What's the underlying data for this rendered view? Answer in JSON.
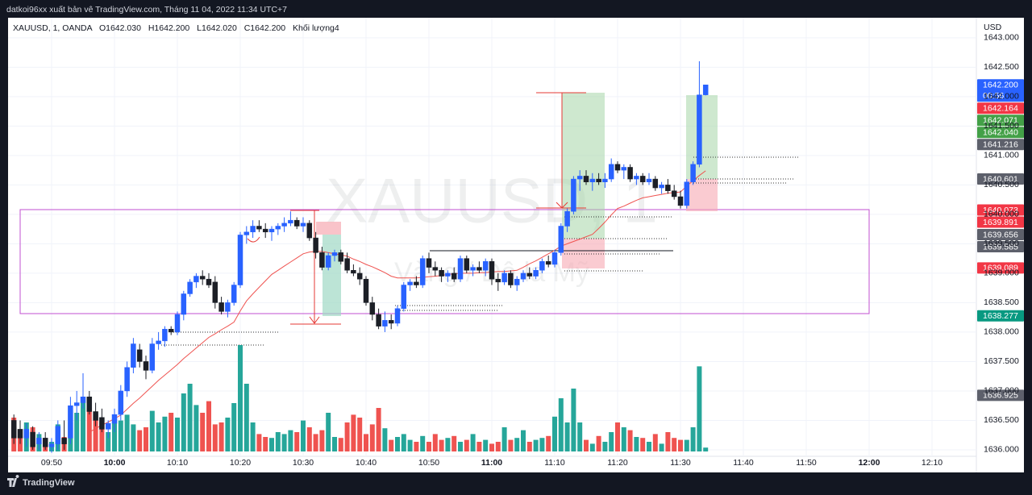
{
  "header": {
    "publisher": "datkoi96xx xuất bản vê TradingView.com, Tháng 11 04, 2022 11:34 UTC+7"
  },
  "footer": {
    "brand": "TradingView"
  },
  "chart_data": {
    "type": "candlestick",
    "symbol": "XAUUSD, 1, OANDA",
    "ohlc_legend": [
      "O1642.030",
      "H1642.200",
      "L1642.020",
      "C1642.200"
    ],
    "volume_legend": "Khối lượng4",
    "watermark": "XAUUSD, 1",
    "watermark_sub": "Vàng / Đô la Mỹ",
    "currency": "USD",
    "x": [
      "09:44",
      "09:45",
      "09:46",
      "09:47",
      "09:48",
      "09:49",
      "09:50",
      "09:51",
      "09:52",
      "09:53",
      "09:54",
      "09:55",
      "09:56",
      "09:57",
      "09:58",
      "09:59",
      "10:00",
      "10:01",
      "10:02",
      "10:03",
      "10:04",
      "10:05",
      "10:06",
      "10:07",
      "10:08",
      "10:09",
      "10:10",
      "10:11",
      "10:12",
      "10:13",
      "10:14",
      "10:15",
      "10:16",
      "10:17",
      "10:18",
      "10:19",
      "10:20",
      "10:21",
      "10:22",
      "10:23",
      "10:24",
      "10:25",
      "10:26",
      "10:27",
      "10:28",
      "10:29",
      "10:30",
      "10:31",
      "10:32",
      "10:33",
      "10:34",
      "10:35",
      "10:36",
      "10:37",
      "10:38",
      "10:39",
      "10:40",
      "10:41",
      "10:42",
      "10:43",
      "10:44",
      "10:45",
      "10:46",
      "10:47",
      "10:48",
      "10:49",
      "10:50",
      "10:51",
      "10:52",
      "10:53",
      "10:54",
      "10:55",
      "10:56",
      "10:57",
      "10:58",
      "10:59",
      "11:00",
      "11:01",
      "11:02",
      "11:03",
      "11:04",
      "11:05",
      "11:06",
      "11:07",
      "11:08",
      "11:09",
      "11:10",
      "11:11",
      "11:12",
      "11:13",
      "11:14",
      "11:15",
      "11:16",
      "11:17",
      "11:18",
      "11:19",
      "11:20",
      "11:21",
      "11:22",
      "11:23",
      "11:24",
      "11:25",
      "11:26",
      "11:27",
      "11:28",
      "11:29",
      "11:30",
      "11:31",
      "11:32",
      "11:33",
      "11:34"
    ],
    "open": [
      1636.5,
      1636.35,
      1636.2,
      1636.3,
      1636.1,
      1636.2,
      1636.05,
      1636.1,
      1636.2,
      1636.2,
      1636.75,
      1636.8,
      1636.9,
      1636.65,
      1636.55,
      1636.35,
      1636.45,
      1636.6,
      1637.0,
      1637.4,
      1637.7,
      1637.5,
      1637.35,
      1637.8,
      1637.85,
      1638.05,
      1638.0,
      1638.3,
      1638.65,
      1638.85,
      1638.95,
      1638.9,
      1638.85,
      1638.5,
      1638.35,
      1638.5,
      1638.8,
      1639.65,
      1639.7,
      1639.8,
      1639.75,
      1639.7,
      1639.75,
      1639.8,
      1639.85,
      1639.9,
      1639.8,
      1639.85,
      1639.6,
      1639.35,
      1639.1,
      1639.3,
      1639.35,
      1639.25,
      1639.05,
      1639.0,
      1638.9,
      1638.5,
      1638.3,
      1638.1,
      1638.2,
      1638.15,
      1638.4,
      1638.8,
      1638.85,
      1638.8,
      1639.25,
      1639.1,
      1639.05,
      1638.95,
      1639.0,
      1638.9,
      1639.25,
      1639.05,
      1639.1,
      1639.05,
      1639.2,
      1638.9,
      1638.85,
      1639.0,
      1638.8,
      1638.9,
      1639.0,
      1638.95,
      1639.05,
      1639.2,
      1639.15,
      1639.35,
      1639.8,
      1640.05,
      1640.6,
      1640.65,
      1640.55,
      1640.6,
      1640.55,
      1640.6,
      1640.85,
      1640.75,
      1640.8,
      1640.6,
      1640.65,
      1640.55,
      1640.6,
      1640.45,
      1640.5,
      1640.4,
      1640.3,
      1640.15,
      1640.55,
      1640.85,
      1642.03
    ],
    "high": [
      1636.6,
      1636.5,
      1636.45,
      1636.4,
      1636.3,
      1636.3,
      1636.2,
      1636.5,
      1636.5,
      1636.9,
      1637.0,
      1637.3,
      1637.0,
      1636.8,
      1636.7,
      1636.5,
      1636.7,
      1637.1,
      1637.5,
      1637.9,
      1637.8,
      1637.6,
      1637.9,
      1638.0,
      1638.1,
      1638.1,
      1638.35,
      1638.7,
      1638.9,
      1639.0,
      1639.05,
      1639.0,
      1638.95,
      1638.6,
      1638.55,
      1638.85,
      1639.7,
      1639.8,
      1639.9,
      1639.9,
      1639.85,
      1639.8,
      1639.85,
      1639.95,
      1640.05,
      1639.95,
      1639.95,
      1639.9,
      1639.7,
      1639.45,
      1639.35,
      1639.4,
      1639.4,
      1639.35,
      1639.15,
      1639.1,
      1638.95,
      1638.6,
      1638.4,
      1638.35,
      1638.3,
      1638.45,
      1638.85,
      1638.9,
      1638.95,
      1639.3,
      1639.35,
      1639.2,
      1639.1,
      1639.05,
      1639.1,
      1639.3,
      1639.3,
      1639.15,
      1639.2,
      1639.25,
      1639.25,
      1639.0,
      1639.05,
      1639.05,
      1638.95,
      1639.05,
      1639.1,
      1639.1,
      1639.25,
      1639.3,
      1639.4,
      1639.85,
      1640.1,
      1640.65,
      1640.75,
      1640.75,
      1640.7,
      1640.7,
      1640.7,
      1640.95,
      1640.9,
      1640.85,
      1640.85,
      1640.7,
      1640.7,
      1640.7,
      1640.65,
      1640.55,
      1640.6,
      1640.5,
      1640.4,
      1640.6,
      1640.9,
      1642.6,
      1642.2
    ],
    "low": [
      1636.1,
      1636.1,
      1636.05,
      1636.0,
      1636.0,
      1636.0,
      1635.95,
      1636.0,
      1636.0,
      1636.1,
      1636.5,
      1636.7,
      1636.6,
      1636.4,
      1636.3,
      1636.2,
      1636.3,
      1636.5,
      1636.9,
      1637.3,
      1637.4,
      1637.2,
      1637.3,
      1637.7,
      1637.75,
      1637.95,
      1637.95,
      1638.2,
      1638.6,
      1638.75,
      1638.8,
      1638.75,
      1638.4,
      1638.3,
      1638.25,
      1638.45,
      1638.75,
      1639.5,
      1639.6,
      1639.7,
      1639.6,
      1639.55,
      1639.65,
      1639.7,
      1639.8,
      1639.75,
      1639.7,
      1639.55,
      1639.25,
      1639.05,
      1639.05,
      1639.2,
      1639.15,
      1639.0,
      1638.95,
      1638.8,
      1638.45,
      1638.2,
      1638.05,
      1638.0,
      1638.05,
      1638.1,
      1638.35,
      1638.7,
      1638.75,
      1638.75,
      1639.0,
      1638.95,
      1638.85,
      1638.85,
      1638.85,
      1638.85,
      1639.0,
      1638.95,
      1639.0,
      1638.95,
      1638.8,
      1638.7,
      1638.8,
      1638.75,
      1638.7,
      1638.85,
      1638.9,
      1638.9,
      1639.0,
      1639.1,
      1639.1,
      1639.3,
      1639.7,
      1640.0,
      1640.4,
      1640.5,
      1640.4,
      1640.5,
      1640.45,
      1640.55,
      1640.7,
      1640.6,
      1640.55,
      1640.5,
      1640.5,
      1640.5,
      1640.4,
      1640.35,
      1640.35,
      1640.25,
      1640.1,
      1640.1,
      1640.5,
      1640.8,
      1642.02
    ],
    "close": [
      1636.2,
      1636.2,
      1636.35,
      1636.05,
      1636.2,
      1636.05,
      1636.1,
      1636.4,
      1636.1,
      1636.75,
      1636.8,
      1636.9,
      1636.65,
      1636.5,
      1636.35,
      1636.45,
      1636.6,
      1637.0,
      1637.4,
      1637.8,
      1637.5,
      1637.35,
      1637.8,
      1637.85,
      1638.05,
      1638.0,
      1638.3,
      1638.65,
      1638.85,
      1638.95,
      1638.9,
      1638.8,
      1638.5,
      1638.35,
      1638.5,
      1638.8,
      1639.65,
      1639.7,
      1639.8,
      1639.75,
      1639.7,
      1639.75,
      1639.8,
      1639.85,
      1639.9,
      1639.8,
      1639.85,
      1639.6,
      1639.35,
      1639.1,
      1639.3,
      1639.35,
      1639.2,
      1639.05,
      1639.0,
      1638.9,
      1638.5,
      1638.3,
      1638.1,
      1638.2,
      1638.15,
      1638.4,
      1638.8,
      1638.85,
      1638.8,
      1639.25,
      1639.1,
      1639.05,
      1638.95,
      1639.0,
      1638.9,
      1639.25,
      1639.05,
      1639.1,
      1639.05,
      1639.2,
      1638.9,
      1638.85,
      1639.0,
      1638.8,
      1638.9,
      1639.0,
      1638.95,
      1639.05,
      1639.2,
      1639.15,
      1639.35,
      1639.8,
      1640.05,
      1640.6,
      1640.65,
      1640.55,
      1640.6,
      1640.55,
      1640.6,
      1640.85,
      1640.75,
      1640.8,
      1640.6,
      1640.65,
      1640.55,
      1640.6,
      1640.45,
      1640.5,
      1640.4,
      1640.3,
      1640.15,
      1640.55,
      1640.85,
      1642.03,
      1642.2
    ],
    "volume": [
      35,
      22,
      30,
      25,
      18,
      12,
      10,
      28,
      15,
      30,
      40,
      55,
      45,
      38,
      28,
      20,
      30,
      32,
      38,
      28,
      22,
      25,
      42,
      30,
      36,
      40,
      35,
      60,
      70,
      48,
      40,
      52,
      28,
      30,
      35,
      50,
      110,
      70,
      30,
      18,
      15,
      14,
      20,
      18,
      22,
      20,
      32,
      25,
      18,
      22,
      40,
      15,
      14,
      30,
      38,
      35,
      18,
      28,
      45,
      24,
      12,
      15,
      18,
      12,
      10,
      16,
      10,
      18,
      12,
      14,
      16,
      10,
      12,
      18,
      10,
      12,
      8,
      10,
      25,
      12,
      14,
      22,
      10,
      12,
      14,
      16,
      36,
      55,
      30,
      65,
      30,
      12,
      8,
      16,
      10,
      20,
      30,
      25,
      22,
      15,
      14,
      10,
      18,
      8,
      20,
      14,
      12,
      12,
      25,
      88,
      4
    ],
    "ma": [
      null,
      null,
      null,
      null,
      null,
      null,
      null,
      null,
      null,
      null,
      null,
      null,
      1636.3,
      1636.36,
      1636.42,
      1636.47,
      1636.53,
      1636.59,
      1636.69,
      1636.79,
      1636.88,
      1636.98,
      1637.08,
      1637.18,
      1637.27,
      1637.36,
      1637.45,
      1637.55,
      1637.64,
      1637.73,
      1637.82,
      1637.91,
      1637.97,
      1638.04,
      1638.1,
      1638.17,
      1638.36,
      1638.53,
      1638.65,
      1638.76,
      1638.87,
      1638.98,
      1639.05,
      1639.12,
      1639.19,
      1639.26,
      1639.33,
      1639.36,
      1639.37,
      1639.37,
      1639.35,
      1639.33,
      1639.31,
      1639.29,
      1639.24,
      1639.2,
      1639.15,
      1639.11,
      1639.06,
      1639.01,
      1638.95,
      1638.92,
      1638.92,
      1638.92,
      1638.92,
      1638.93,
      1638.94,
      1638.95,
      1638.96,
      1638.98,
      1638.99,
      1639.0,
      1639.0,
      1639.0,
      1639.01,
      1639.01,
      1639.02,
      1639.03,
      1639.03,
      1639.04,
      1639.05,
      1639.1,
      1639.16,
      1639.21,
      1639.27,
      1639.33,
      1639.39,
      1639.46,
      1639.5,
      1639.54,
      1639.58,
      1639.62,
      1639.66,
      1639.76,
      1639.87,
      1639.99,
      1640.1,
      1640.14,
      1640.19,
      1640.24,
      1640.28,
      1640.3,
      1640.32,
      1640.34,
      1640.36,
      1640.37,
      1640.38,
      1640.48,
      1640.57,
      1640.66,
      1640.74
    ],
    "up_color": "#2962ff",
    "down_color": "#1c1f26",
    "volume_up_color": "#26a69a",
    "volume_down_color": "#ef5350",
    "ma_color": "#ef5350",
    "grid": true,
    "ylim": [
      1635.89,
      1643.34
    ],
    "yticks": [
      {
        "value": 1636.0,
        "label": "1636.000"
      },
      {
        "value": 1636.5,
        "label": "1636.500"
      },
      {
        "value": 1637.0,
        "label": "1637.000"
      },
      {
        "value": 1637.5,
        "label": "1637.500"
      },
      {
        "value": 1638.0,
        "label": "1638.000"
      },
      {
        "value": 1638.5,
        "label": "1638.500"
      },
      {
        "value": 1639.0,
        "label": "1639.000"
      },
      {
        "value": 1639.5,
        "label": "1639.500"
      },
      {
        "value": 1640.0,
        "label": "1640.000"
      },
      {
        "value": 1640.5,
        "label": "1640.500"
      },
      {
        "value": 1641.0,
        "label": "1641.000"
      },
      {
        "value": 1641.5,
        "label": "1641.500"
      },
      {
        "value": 1642.0,
        "label": "1642.000"
      },
      {
        "value": 1642.5,
        "label": "1642.500"
      },
      {
        "value": 1643.0,
        "label": "1643.000"
      }
    ],
    "xticks": [
      "09:50",
      "10:00",
      "10:10",
      "10:20",
      "10:30",
      "10:40",
      "10:50",
      "11:00",
      "11:10",
      "11:20",
      "11:30",
      "11:40",
      "11:50",
      "12:00",
      "12:10"
    ],
    "price_tags": [
      {
        "value": 1642.2,
        "label": "1642.200",
        "color": "#2962ff",
        "countdown": "00:56"
      },
      {
        "value": 1642.164,
        "label": "1642.164",
        "color": "#f23645"
      },
      {
        "value": 1642.071,
        "label": "1642.071",
        "color": "#43a047"
      },
      {
        "value": 1642.04,
        "label": "1642.040",
        "color": "#43a047"
      },
      {
        "value": 1641.216,
        "label": "1641.216",
        "color": "#5d606b"
      },
      {
        "value": 1640.601,
        "label": "1640.601",
        "color": "#5d606b"
      },
      {
        "value": 1640.073,
        "label": "1640.073",
        "color": "#f23645"
      },
      {
        "value": 1639.891,
        "label": "1639.891",
        "color": "#f23645"
      },
      {
        "value": 1639.656,
        "label": "1639.656",
        "color": "#5d606b"
      },
      {
        "value": 1639.585,
        "label": "1639.585",
        "color": "#5d606b"
      },
      {
        "value": 1639.089,
        "label": "1639.089",
        "color": "#f23645"
      },
      {
        "value": 1638.277,
        "label": "1638.277",
        "color": "#089981"
      },
      {
        "value": 1636.925,
        "label": "1636.925",
        "color": "#5d606b"
      }
    ]
  }
}
